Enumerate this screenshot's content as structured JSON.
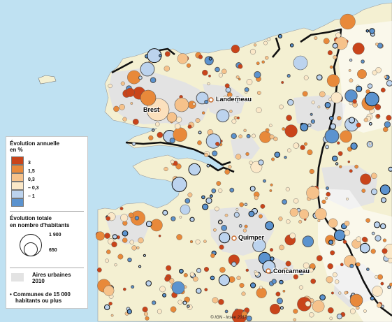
{
  "legend": {
    "evolution_title_line1": "Évolution annuelle",
    "evolution_title_line2": "en %",
    "classes": [
      {
        "label": "3",
        "color": "#c9441a"
      },
      {
        "label": "1,5",
        "color": "#e8893a"
      },
      {
        "label": "0,3",
        "color": "#f6c28b"
      },
      {
        "label": "– 0,3",
        "color": "#fbe8c8"
      },
      {
        "label": "– 1",
        "color": "#bcd3ee"
      },
      {
        "label": "",
        "color": "#5b93cf"
      }
    ],
    "total_title_line1": "Évolution totale",
    "total_title_line2": "en nombre d'habitants",
    "size_labels": [
      "1 900",
      "650"
    ],
    "urban_label_line1": "Aires urbaines",
    "urban_label_line2": "2010",
    "communes_label_line1": "• Communes de 15 000",
    "communes_label_line2": "habitants ou plus"
  },
  "cities": [
    {
      "name": "Brest"
    },
    {
      "name": "Landerneau"
    },
    {
      "name": "Quimper"
    },
    {
      "name": "Concarneau"
    }
  ],
  "source": "© IGN - Insee 2017",
  "colors": {
    "sea": "#bfe1f2",
    "land": "#f4f0d2",
    "urban": "#e3e3e3",
    "boundary": "#111111"
  }
}
